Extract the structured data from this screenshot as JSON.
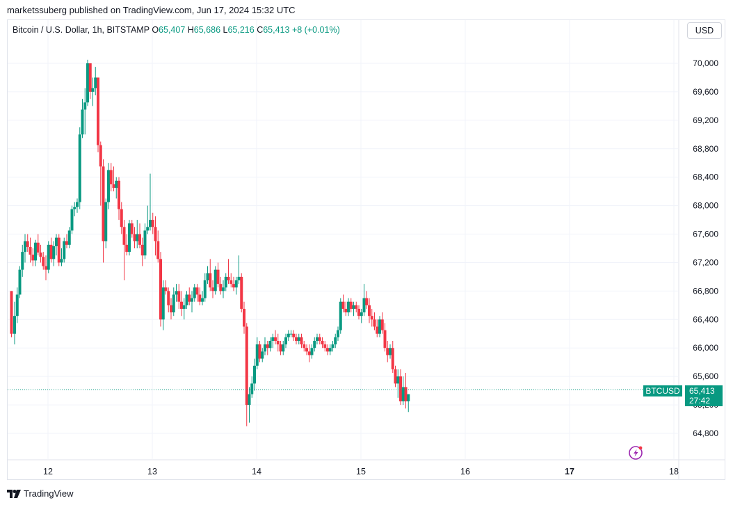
{
  "header": {
    "credit": "marketssuberg published on TradingView.com, Jun 17, 2024 15:32 UTC"
  },
  "legend": {
    "symbol": "Bitcoin / U.S. Dollar, 1h, BITSTAMP",
    "open_label": "O",
    "open": "65,407",
    "high_label": "H",
    "high": "65,686",
    "low_label": "L",
    "low": "65,216",
    "close_label": "C",
    "close": "65,413",
    "change": "+8 (+0.01%)"
  },
  "currency_button": "USD",
  "price_tag": {
    "ticker": "BTCUSD",
    "price": "65,413",
    "countdown": "27:42"
  },
  "footer": {
    "brand": "TradingView"
  },
  "colors": {
    "up": "#089981",
    "down": "#f23645",
    "grid": "#f0f3fa",
    "text": "#131722"
  },
  "chart_data": {
    "type": "candlestick",
    "title": "Bitcoin / U.S. Dollar, 1h, BITSTAMP",
    "xlabel": "",
    "ylabel": "",
    "ylim": [
      64600,
      70400
    ],
    "yticks": [
      64800,
      65200,
      65600,
      66000,
      66400,
      66800,
      67200,
      67600,
      68000,
      68400,
      68800,
      69200,
      69600,
      70000
    ],
    "ytick_labels": [
      "64,800",
      "65,200",
      "65,600",
      "66,000",
      "66,400",
      "66,800",
      "67,200",
      "67,600",
      "68,000",
      "68,400",
      "68,800",
      "69,200",
      "69,600",
      "70,000"
    ],
    "xlim_days": [
      11.64,
      18.35
    ],
    "xticks": [
      {
        "day": 12,
        "label": "12",
        "bold": false
      },
      {
        "day": 13,
        "label": "13",
        "bold": false
      },
      {
        "day": 14,
        "label": "14",
        "bold": false
      },
      {
        "day": 15,
        "label": "15",
        "bold": false
      },
      {
        "day": 16,
        "label": "16",
        "bold": false
      },
      {
        "day": 17,
        "label": "17",
        "bold": true
      },
      {
        "day": 18,
        "label": "18",
        "bold": false
      }
    ],
    "last_price": 65413,
    "candles": [
      [
        11.65,
        66800,
        66800,
        66150,
        66200
      ],
      [
        11.68,
        66200,
        66650,
        66050,
        66450
      ],
      [
        11.705,
        66450,
        66850,
        66350,
        66750
      ],
      [
        11.73,
        66750,
        67150,
        66700,
        67100
      ],
      [
        11.755,
        67100,
        67450,
        67000,
        67350
      ],
      [
        11.78,
        67350,
        67600,
        67200,
        67500
      ],
      [
        11.805,
        67500,
        67600,
        67350,
        67420
      ],
      [
        11.83,
        67420,
        67550,
        67200,
        67310
      ],
      [
        11.855,
        67310,
        67400,
        67150,
        67230
      ],
      [
        11.88,
        67230,
        67520,
        67150,
        67480
      ],
      [
        11.905,
        67480,
        67600,
        67300,
        67340
      ],
      [
        11.93,
        67340,
        67450,
        67200,
        67280
      ],
      [
        11.955,
        67280,
        67350,
        67100,
        67150
      ],
      [
        11.98,
        67150,
        67300,
        66950,
        67100
      ],
      [
        12.005,
        67100,
        67500,
        67050,
        67450
      ],
      [
        12.03,
        67450,
        67550,
        67200,
        67250
      ],
      [
        12.055,
        67250,
        67500,
        67150,
        67430
      ],
      [
        12.08,
        67430,
        67600,
        67300,
        67550
      ],
      [
        12.105,
        67550,
        67600,
        67150,
        67200
      ],
      [
        12.13,
        67200,
        67400,
        67150,
        67250
      ],
      [
        12.155,
        67250,
        67550,
        67200,
        67500
      ],
      [
        12.18,
        67500,
        67600,
        67400,
        67450
      ],
      [
        12.205,
        67450,
        67700,
        67400,
        67650
      ],
      [
        12.23,
        67650,
        68000,
        67600,
        67950
      ],
      [
        12.255,
        67950,
        68050,
        67850,
        67980
      ],
      [
        12.28,
        67980,
        68100,
        67900,
        68050
      ],
      [
        12.305,
        68050,
        69100,
        67950,
        69000
      ],
      [
        12.33,
        69000,
        69500,
        68950,
        69350
      ],
      [
        12.355,
        69350,
        69650,
        69000,
        69450
      ],
      [
        12.38,
        69450,
        70050,
        69400,
        70000
      ],
      [
        12.405,
        70000,
        70000,
        69500,
        69600
      ],
      [
        12.43,
        69600,
        69800,
        69400,
        69650
      ],
      [
        12.455,
        69650,
        69950,
        69550,
        69800
      ],
      [
        12.48,
        69800,
        69800,
        68750,
        68850
      ],
      [
        12.505,
        68850,
        68900,
        68000,
        68550
      ],
      [
        12.53,
        68550,
        68650,
        67200,
        67500
      ],
      [
        12.555,
        67500,
        68100,
        67400,
        68050
      ],
      [
        12.58,
        68050,
        68600,
        67950,
        68500
      ],
      [
        12.605,
        68500,
        68600,
        68200,
        68300
      ],
      [
        12.63,
        68300,
        68550,
        68200,
        68250
      ],
      [
        12.655,
        68250,
        68400,
        68100,
        68350
      ],
      [
        12.68,
        68350,
        68400,
        67800,
        67950
      ],
      [
        12.705,
        67950,
        68050,
        67600,
        67700
      ],
      [
        12.73,
        67700,
        67800,
        66950,
        67450
      ],
      [
        12.755,
        67450,
        67600,
        67300,
        67350
      ],
      [
        12.78,
        67350,
        67800,
        67300,
        67750
      ],
      [
        12.805,
        67750,
        67800,
        67550,
        67600
      ],
      [
        12.83,
        67600,
        67700,
        67400,
        67500
      ],
      [
        12.855,
        67500,
        67800,
        67400,
        67600
      ],
      [
        12.88,
        67600,
        67750,
        67400,
        67450
      ],
      [
        12.905,
        67450,
        67550,
        67150,
        67300
      ],
      [
        12.93,
        67300,
        67750,
        67250,
        67650
      ],
      [
        12.955,
        67650,
        68000,
        67600,
        67700
      ],
      [
        12.98,
        67700,
        68450,
        67650,
        67800
      ],
      [
        13.005,
        67800,
        67900,
        67600,
        67700
      ],
      [
        13.03,
        67700,
        67850,
        67300,
        67500
      ],
      [
        13.055,
        67500,
        67650,
        67200,
        67250
      ],
      [
        13.08,
        67250,
        67350,
        66300,
        66400
      ],
      [
        13.105,
        66400,
        66950,
        66250,
        66850
      ],
      [
        13.13,
        66850,
        66950,
        66750,
        66800
      ],
      [
        13.155,
        66800,
        66850,
        66500,
        66600
      ],
      [
        13.18,
        66600,
        66700,
        66400,
        66500
      ],
      [
        13.205,
        66500,
        66850,
        66450,
        66750
      ],
      [
        13.23,
        66750,
        66900,
        66650,
        66800
      ],
      [
        13.255,
        66800,
        66900,
        66550,
        66650
      ],
      [
        13.28,
        66650,
        66800,
        66450,
        66550
      ],
      [
        13.305,
        66550,
        66700,
        66400,
        66600
      ],
      [
        13.33,
        66600,
        66800,
        66550,
        66750
      ],
      [
        13.355,
        66750,
        66850,
        66600,
        66650
      ],
      [
        13.38,
        66650,
        66800,
        66500,
        66700
      ],
      [
        13.405,
        66700,
        66900,
        66650,
        66850
      ],
      [
        13.43,
        66850,
        66900,
        66650,
        66750
      ],
      [
        13.455,
        66750,
        66850,
        66600,
        66650
      ],
      [
        13.48,
        66650,
        66800,
        66600,
        66700
      ],
      [
        13.505,
        66700,
        67050,
        66650,
        66950
      ],
      [
        13.53,
        66950,
        67150,
        66900,
        67050
      ],
      [
        13.555,
        67050,
        67250,
        66800,
        66850
      ],
      [
        13.58,
        66850,
        66950,
        66700,
        66800
      ],
      [
        13.605,
        66800,
        67150,
        66750,
        67100
      ],
      [
        13.63,
        67100,
        67200,
        66850,
        66900
      ],
      [
        13.655,
        66900,
        67000,
        66750,
        66800
      ],
      [
        13.68,
        66800,
        66950,
        66700,
        66850
      ],
      [
        13.705,
        66850,
        67050,
        66800,
        67000
      ],
      [
        13.73,
        67000,
        67250,
        66900,
        66950
      ],
      [
        13.755,
        66950,
        67050,
        66850,
        66900
      ],
      [
        13.78,
        66900,
        67000,
        66800,
        66850
      ],
      [
        13.805,
        66850,
        67000,
        66750,
        66950
      ],
      [
        13.83,
        66950,
        67300,
        66900,
        67000
      ],
      [
        13.855,
        67000,
        67050,
        66500,
        66550
      ],
      [
        13.88,
        66550,
        66650,
        66200,
        66300
      ],
      [
        13.905,
        66300,
        66350,
        64900,
        65200
      ],
      [
        13.93,
        65200,
        65450,
        64950,
        65350
      ],
      [
        13.955,
        65350,
        65600,
        65300,
        65500
      ],
      [
        13.98,
        65500,
        65850,
        65400,
        65750
      ],
      [
        14.005,
        65750,
        66150,
        65700,
        66050
      ],
      [
        14.03,
        66050,
        66100,
        65800,
        65850
      ],
      [
        14.055,
        65850,
        66000,
        65800,
        65950
      ],
      [
        14.08,
        65950,
        66150,
        65900,
        66050
      ],
      [
        14.105,
        66050,
        66100,
        65900,
        66000
      ],
      [
        14.13,
        66000,
        66150,
        65950,
        66100
      ],
      [
        14.155,
        66100,
        66200,
        66000,
        66150
      ],
      [
        14.18,
        66150,
        66250,
        66050,
        66100
      ],
      [
        14.205,
        66100,
        66200,
        65950,
        66050
      ],
      [
        14.23,
        66050,
        66100,
        65900,
        65950
      ],
      [
        14.255,
        65950,
        66100,
        65900,
        66050
      ],
      [
        14.28,
        66050,
        66200,
        66000,
        66150
      ],
      [
        14.305,
        66150,
        66250,
        66100,
        66200
      ],
      [
        14.33,
        66200,
        66250,
        66150,
        66200
      ],
      [
        14.355,
        66200,
        66250,
        66100,
        66150
      ],
      [
        14.38,
        66150,
        66200,
        66050,
        66100
      ],
      [
        14.405,
        66100,
        66200,
        66050,
        66150
      ],
      [
        14.43,
        66150,
        66200,
        66000,
        66050
      ],
      [
        14.455,
        66050,
        66100,
        65950,
        66000
      ],
      [
        14.48,
        66000,
        66050,
        65900,
        65950
      ],
      [
        14.505,
        65950,
        66050,
        65800,
        65900
      ],
      [
        14.53,
        65900,
        66050,
        65850,
        66000
      ],
      [
        14.555,
        66000,
        66150,
        65950,
        66100
      ],
      [
        14.58,
        66100,
        66200,
        66050,
        66150
      ],
      [
        14.605,
        66150,
        66200,
        66050,
        66100
      ],
      [
        14.63,
        66100,
        66150,
        66000,
        66050
      ],
      [
        14.655,
        66050,
        66100,
        65950,
        66000
      ],
      [
        14.68,
        66000,
        66050,
        65900,
        65950
      ],
      [
        14.705,
        65950,
        66050,
        65900,
        66000
      ],
      [
        14.73,
        66000,
        66100,
        65950,
        66050
      ],
      [
        14.755,
        66050,
        66200,
        66000,
        66150
      ],
      [
        14.78,
        66150,
        66300,
        66100,
        66250
      ],
      [
        14.805,
        66250,
        66700,
        66200,
        66650
      ],
      [
        14.83,
        66650,
        66750,
        66500,
        66550
      ],
      [
        14.855,
        66550,
        66650,
        66450,
        66500
      ],
      [
        14.88,
        66500,
        66700,
        66450,
        66650
      ],
      [
        14.905,
        66650,
        66700,
        66500,
        66550
      ],
      [
        14.93,
        66550,
        66650,
        66450,
        66600
      ],
      [
        14.955,
        66600,
        66650,
        66500,
        66550
      ],
      [
        14.98,
        66550,
        66600,
        66400,
        66450
      ],
      [
        15.005,
        66450,
        66550,
        66350,
        66500
      ],
      [
        15.03,
        66500,
        66900,
        66450,
        66700
      ],
      [
        15.055,
        66700,
        66800,
        66550,
        66600
      ],
      [
        15.08,
        66600,
        66700,
        66350,
        66450
      ],
      [
        15.105,
        66450,
        66550,
        66300,
        66400
      ],
      [
        15.13,
        66400,
        66500,
        66250,
        66300
      ],
      [
        15.155,
        66300,
        66400,
        66150,
        66200
      ],
      [
        15.18,
        66200,
        66450,
        66150,
        66400
      ],
      [
        15.205,
        66400,
        66500,
        66200,
        66250
      ],
      [
        15.23,
        66250,
        66350,
        65950,
        66000
      ],
      [
        15.255,
        66000,
        66100,
        65800,
        65900
      ],
      [
        15.28,
        65900,
        66050,
        65850,
        66000
      ],
      [
        15.305,
        66000,
        66100,
        65650,
        65700
      ],
      [
        15.33,
        65700,
        65750,
        65450,
        65500
      ],
      [
        15.355,
        65500,
        65700,
        65300,
        65600
      ],
      [
        15.38,
        65600,
        65700,
        65200,
        65250
      ],
      [
        15.405,
        65250,
        65600,
        65200,
        65450
      ],
      [
        15.43,
        65450,
        65650,
        65150,
        65250
      ],
      [
        15.455,
        65250,
        65350,
        65100,
        65350
      ]
    ]
  }
}
